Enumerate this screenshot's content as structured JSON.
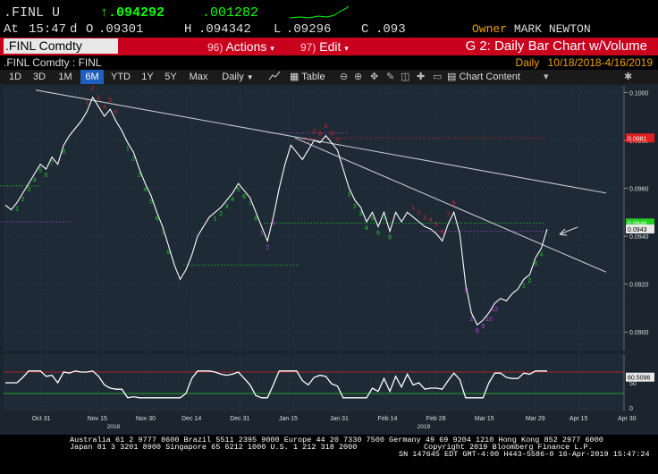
{
  "quote": {
    "ticker": ".FINL U",
    "last_arrow": "↑",
    "last": ".094292",
    "change": ".001282",
    "time_label": "At",
    "time": "15:47",
    "d_label": "d",
    "open_label": "O",
    "open": ".09301",
    "high_label": "H",
    "high": ".094342",
    "low_label": "L",
    "low": ".09296",
    "close_label": "C",
    "close": ".093",
    "owner_label": "Owner",
    "owner": "MARK NEWTON"
  },
  "toolbar": {
    "security": ".FINL Comdty",
    "actions_num": "96)",
    "actions_label": "Actions",
    "edit_num": "97)",
    "edit_label": "Edit",
    "chart_title": "G 2: Daily Bar Chart w/Volume"
  },
  "subheader": {
    "left": ".FINL Comdty : FINL",
    "period": "Daily",
    "date_range": "10/18/2018-4/16/2019"
  },
  "rangebar": {
    "ranges": [
      "1D",
      "3D",
      "1M",
      "6M",
      "YTD",
      "1Y",
      "5Y",
      "Max"
    ],
    "active": "6M",
    "frequency": "Daily",
    "table_label": "Table",
    "chart_content_label": "Chart Content"
  },
  "colors": {
    "price_line": "#ffffff",
    "trend_line": "#c8c8d0",
    "count_green": "#22d022",
    "count_red": "#e02020",
    "count_magenta": "#c040e0",
    "grid": "#3a4048",
    "panel_bg": "#1e2a36"
  },
  "chart_data": {
    "type": "line",
    "y_axis": {
      "ticks": [
        "0.1000",
        "0.0980",
        "0.0960",
        "0.0940",
        "0.0920",
        "0.0900"
      ],
      "ylim": [
        0.0893,
        0.1002
      ]
    },
    "x_axis": {
      "labels": [
        "Oct 31",
        "Nov 15",
        "Nov 30",
        "Dec 14",
        "Dec 31",
        "Jan 15",
        "Jan 31",
        "Feb 14",
        "Feb 28",
        "Mar 15",
        "Mar 29",
        "Apr 15",
        "Apr 30"
      ],
      "years": [
        "2018",
        "2019"
      ]
    },
    "price_labels": [
      {
        "text": "0.0981",
        "color": "#e02020",
        "y": 0.0981
      },
      {
        "text": "0.0946",
        "color": "#22d022",
        "y": 0.09455
      },
      {
        "text": "0.0943",
        "color": "#ffffff",
        "y": 0.0943
      }
    ],
    "series": [
      {
        "values": [
          0.0953,
          0.0951,
          0.0954,
          0.0958,
          0.0962,
          0.0966,
          0.097,
          0.0968,
          0.0973,
          0.097,
          0.0978,
          0.0982,
          0.0985,
          0.0988,
          0.0992,
          0.0998,
          0.0994,
          0.099,
          0.0993,
          0.0988,
          0.0984,
          0.0979,
          0.0975,
          0.0968,
          0.0962,
          0.0957,
          0.095,
          0.0944,
          0.0936,
          0.0928,
          0.0922,
          0.0926,
          0.0932,
          0.094,
          0.0944,
          0.0948,
          0.095,
          0.0952,
          0.0955,
          0.0958,
          0.0962,
          0.0959,
          0.0956,
          0.095,
          0.0944,
          0.0938,
          0.0948,
          0.096,
          0.097,
          0.0978,
          0.0975,
          0.0972,
          0.0976,
          0.098,
          0.0979,
          0.0982,
          0.0979,
          0.0976,
          0.0968,
          0.096,
          0.0955,
          0.0952,
          0.0946,
          0.095,
          0.0944,
          0.095,
          0.0942,
          0.095,
          0.0946,
          0.095,
          0.0948,
          0.0946,
          0.0944,
          0.0943,
          0.0941,
          0.0938,
          0.0945,
          0.095,
          0.0941,
          0.092,
          0.0908,
          0.0903,
          0.0905,
          0.0908,
          0.0912,
          0.0914,
          0.0913,
          0.0916,
          0.0918,
          0.0922,
          0.0924,
          0.0931,
          0.0935,
          0.0943
        ]
      }
    ]
  },
  "indicator": {
    "value_label": "60.5096",
    "ticks": [
      "50",
      "0"
    ]
  },
  "footer": {
    "line1": "Australia 61 2 9777 8600  Brazil 5511 2395 9000  Europe 44 20 7330 7500  Germany 49 69 9204 1210  Hong Kong 852 2977 6000",
    "line2": "Japan 81 3 3201 8900        Singapore 65 6212 1000        U.S. 1 212 318 2000",
    "line3": "Copyright 2019 Bloomberg Finance L.P.",
    "line4": "SN 147645 EDT  GMT-4:00 H443-5586-0 16-Apr-2019 15:47:24"
  }
}
